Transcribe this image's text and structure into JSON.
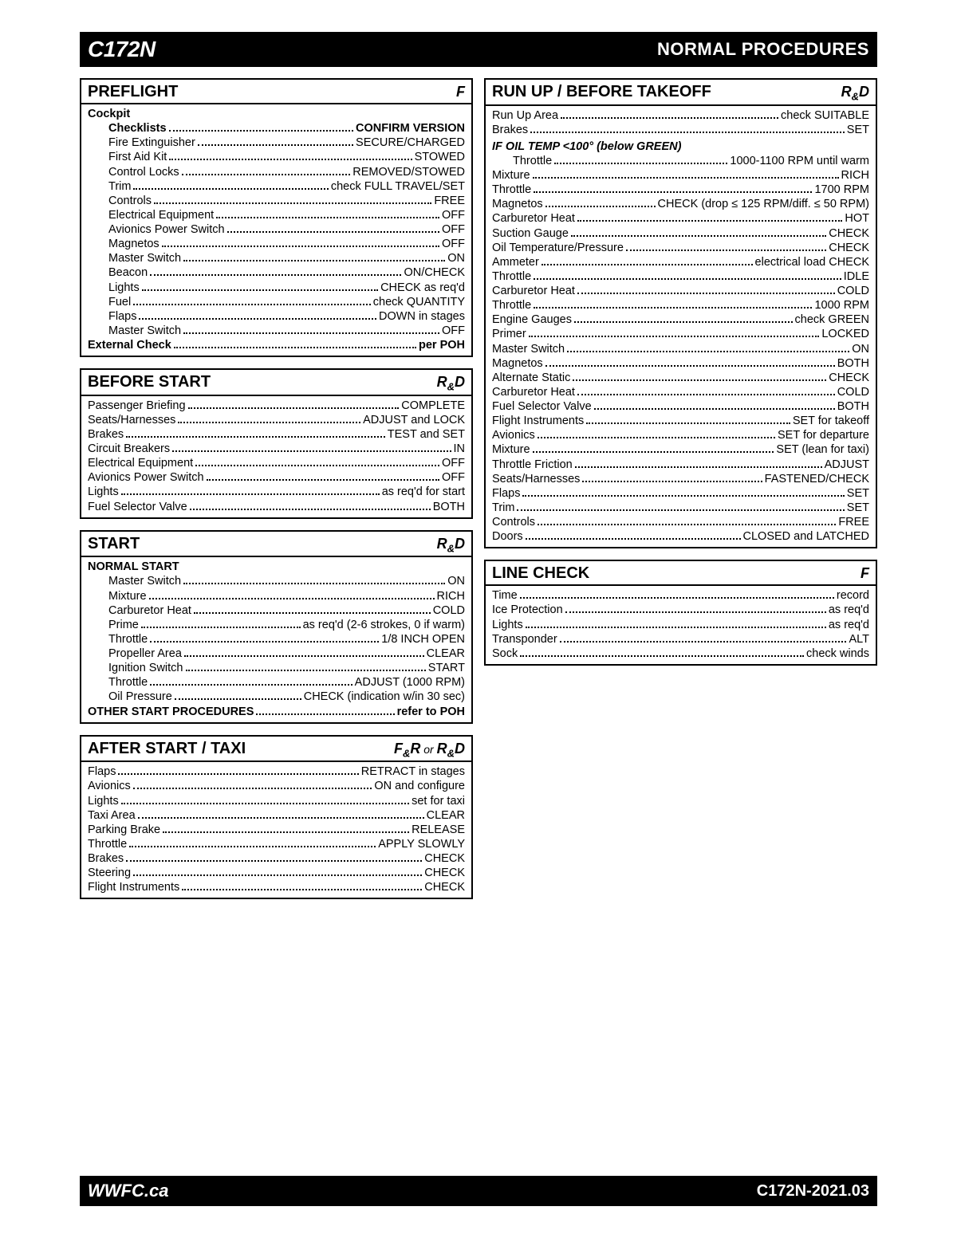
{
  "header": {
    "left": "C172N",
    "right": "NORMAL PROCEDURES"
  },
  "footer": {
    "left": "WWFC.ca",
    "right": "C172N-2021.03"
  },
  "left_col": [
    {
      "title": "PREFLIGHT",
      "tag": "F",
      "rows": [
        {
          "type": "subhead",
          "text": "Cockpit"
        },
        {
          "type": "item",
          "label": "Checklists",
          "value": "CONFIRM VERSION",
          "bold": true,
          "indent": true
        },
        {
          "type": "item",
          "label": "Fire Extinguisher",
          "value": "SECURE/CHARGED",
          "indent": true
        },
        {
          "type": "item",
          "label": "First Aid Kit",
          "value": "STOWED",
          "indent": true
        },
        {
          "type": "item",
          "label": "Control Locks",
          "value": "REMOVED/STOWED",
          "indent": true
        },
        {
          "type": "item",
          "label": "Trim",
          "value": "check FULL TRAVEL/SET",
          "indent": true
        },
        {
          "type": "item",
          "label": "Controls",
          "value": "FREE",
          "indent": true
        },
        {
          "type": "item",
          "label": "Electrical Equipment",
          "value": "OFF",
          "indent": true
        },
        {
          "type": "item",
          "label": "Avionics Power Switch",
          "value": "OFF",
          "indent": true
        },
        {
          "type": "item",
          "label": "Magnetos",
          "value": "OFF",
          "indent": true
        },
        {
          "type": "item",
          "label": "Master Switch",
          "value": "ON",
          "indent": true
        },
        {
          "type": "item",
          "label": "Beacon",
          "value": "ON/CHECK",
          "indent": true
        },
        {
          "type": "item",
          "label": "Lights",
          "value": "CHECK as req'd",
          "indent": true
        },
        {
          "type": "item",
          "label": "Fuel",
          "value": "check QUANTITY",
          "indent": true
        },
        {
          "type": "item",
          "label": "Flaps",
          "value": "DOWN in stages",
          "indent": true
        },
        {
          "type": "item",
          "label": "Master Switch",
          "value": "OFF",
          "indent": true
        },
        {
          "type": "item",
          "label": "External Check",
          "value": "per POH",
          "bold": true
        }
      ]
    },
    {
      "title": "BEFORE START",
      "tag": "R&D",
      "rows": [
        {
          "type": "item",
          "label": "Passenger Briefing",
          "value": "COMPLETE"
        },
        {
          "type": "item",
          "label": "Seats/Harnesses",
          "value": "ADJUST and LOCK"
        },
        {
          "type": "item",
          "label": "Brakes",
          "value": "TEST and SET"
        },
        {
          "type": "item",
          "label": "Circuit Breakers",
          "value": "IN"
        },
        {
          "type": "item",
          "label": "Electrical Equipment",
          "value": "OFF"
        },
        {
          "type": "item",
          "label": "Avionics Power Switch",
          "value": "OFF"
        },
        {
          "type": "item",
          "label": "Lights",
          "value": "as req'd for start"
        },
        {
          "type": "item",
          "label": "Fuel Selector Valve",
          "value": "BOTH"
        }
      ]
    },
    {
      "title": "START",
      "tag": "R&D",
      "rows": [
        {
          "type": "subhead",
          "text": "NORMAL START"
        },
        {
          "type": "item",
          "label": "Master Switch",
          "value": "ON",
          "indent": true
        },
        {
          "type": "item",
          "label": "Mixture",
          "value": "RICH",
          "indent": true
        },
        {
          "type": "item",
          "label": "Carburetor Heat",
          "value": "COLD",
          "indent": true
        },
        {
          "type": "item",
          "label": "Prime",
          "value": "as req'd (2-6 strokes, 0 if warm)",
          "indent": true
        },
        {
          "type": "item",
          "label": "Throttle",
          "value": "1/8 INCH OPEN",
          "indent": true
        },
        {
          "type": "item",
          "label": "Propeller Area",
          "value": "CLEAR",
          "indent": true
        },
        {
          "type": "item",
          "label": "Ignition Switch",
          "value": "START",
          "indent": true
        },
        {
          "type": "item",
          "label": "Throttle",
          "value": "ADJUST (1000 RPM)",
          "indent": true
        },
        {
          "type": "item",
          "label": "Oil Pressure",
          "value": "CHECK (indication w/in 30 sec)",
          "indent": true
        },
        {
          "type": "item",
          "label": "OTHER START PROCEDURES",
          "value": "refer to POH",
          "bold": true
        }
      ]
    },
    {
      "title": "AFTER START / TAXI",
      "tag": "F&R or R&D",
      "rows": [
        {
          "type": "item",
          "label": "Flaps",
          "value": "RETRACT in stages"
        },
        {
          "type": "item",
          "label": "Avionics",
          "value": "ON and configure"
        },
        {
          "type": "item",
          "label": "Lights",
          "value": "set for taxi"
        },
        {
          "type": "item",
          "label": "Taxi Area",
          "value": "CLEAR"
        },
        {
          "type": "item",
          "label": "Parking Brake",
          "value": "RELEASE"
        },
        {
          "type": "item",
          "label": "Throttle",
          "value": "APPLY SLOWLY"
        },
        {
          "type": "item",
          "label": "Brakes",
          "value": "CHECK"
        },
        {
          "type": "item",
          "label": "Steering",
          "value": "CHECK"
        },
        {
          "type": "item",
          "label": "Flight Instruments",
          "value": "CHECK"
        }
      ]
    }
  ],
  "right_col": [
    {
      "title": "RUN UP / BEFORE TAKEOFF",
      "tag": "R&D",
      "rows": [
        {
          "type": "item",
          "label": "Run Up Area",
          "value": "check SUITABLE"
        },
        {
          "type": "item",
          "label": "Brakes",
          "value": "SET"
        },
        {
          "type": "subhead",
          "text": "IF OIL TEMP <100° (below GREEN)",
          "italic": true
        },
        {
          "type": "item",
          "label": "Throttle",
          "value": "1000-1100 RPM until warm",
          "indent": true
        },
        {
          "type": "item",
          "label": "Mixture",
          "value": "RICH"
        },
        {
          "type": "item",
          "label": "Throttle",
          "value": "1700 RPM"
        },
        {
          "type": "item",
          "label": "Magnetos",
          "value": "CHECK (drop ≤ 125 RPM/diff. ≤ 50 RPM)"
        },
        {
          "type": "item",
          "label": "Carburetor Heat",
          "value": "HOT"
        },
        {
          "type": "item",
          "label": "Suction Gauge",
          "value": "CHECK"
        },
        {
          "type": "item",
          "label": "Oil Temperature/Pressure",
          "value": "CHECK"
        },
        {
          "type": "item",
          "label": "Ammeter",
          "value": "electrical load CHECK"
        },
        {
          "type": "item",
          "label": "Throttle",
          "value": "IDLE"
        },
        {
          "type": "item",
          "label": "Carburetor Heat",
          "value": "COLD"
        },
        {
          "type": "item",
          "label": "Throttle",
          "value": "1000 RPM"
        },
        {
          "type": "item",
          "label": "Engine Gauges",
          "value": "check GREEN"
        },
        {
          "type": "item",
          "label": "Primer",
          "value": "LOCKED"
        },
        {
          "type": "item",
          "label": "Master Switch",
          "value": "ON"
        },
        {
          "type": "item",
          "label": "Magnetos",
          "value": "BOTH"
        },
        {
          "type": "item",
          "label": "Alternate Static",
          "value": "CHECK"
        },
        {
          "type": "item",
          "label": "Carburetor Heat",
          "value": "COLD"
        },
        {
          "type": "item",
          "label": "Fuel Selector Valve",
          "value": "BOTH"
        },
        {
          "type": "item",
          "label": "Flight Instruments",
          "value": "SET for takeoff"
        },
        {
          "type": "item",
          "label": "Avionics",
          "value": "SET for departure"
        },
        {
          "type": "item",
          "label": "Mixture",
          "value": "SET (lean for taxi)"
        },
        {
          "type": "item",
          "label": "Throttle Friction",
          "value": "ADJUST"
        },
        {
          "type": "item",
          "label": "Seats/Harnesses",
          "value": "FASTENED/CHECK"
        },
        {
          "type": "item",
          "label": "Flaps",
          "value": "SET"
        },
        {
          "type": "item",
          "label": "Trim",
          "value": "SET"
        },
        {
          "type": "item",
          "label": "Controls",
          "value": "FREE"
        },
        {
          "type": "item",
          "label": "Doors",
          "value": "CLOSED and LATCHED"
        }
      ]
    },
    {
      "title": "LINE CHECK",
      "tag": "F",
      "rows": [
        {
          "type": "item",
          "label": "Time",
          "value": "record"
        },
        {
          "type": "item",
          "label": "Ice Protection",
          "value": "as req'd"
        },
        {
          "type": "item",
          "label": "Lights",
          "value": "as req'd"
        },
        {
          "type": "item",
          "label": "Transponder",
          "value": "ALT"
        },
        {
          "type": "item",
          "label": "Sock",
          "value": "check winds"
        }
      ]
    }
  ]
}
